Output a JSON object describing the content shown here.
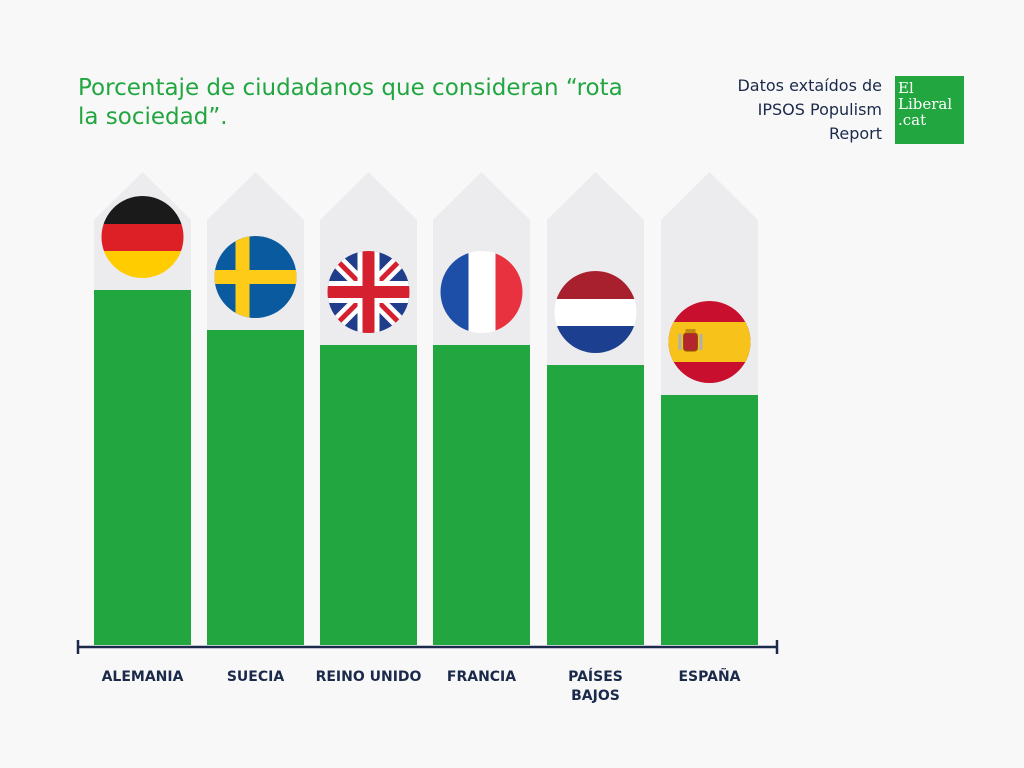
{
  "title": "Porcentaje de ciudadanos que consideran “rota la sociedad”.",
  "source": {
    "line1": "Datos extaídos de",
    "line2": "IPSOS Populism",
    "line3": "Report"
  },
  "logo": {
    "line1": "El",
    "line2": "Liberal",
    "line3": ".cat"
  },
  "colors": {
    "bar": "#21a640",
    "background_column": "#ececee",
    "axis": "#1b2a4a",
    "title": "#21a640"
  },
  "chart_data": {
    "type": "bar",
    "categories": [
      "ALEMANIA",
      "SUECIA",
      "REINO UNIDO",
      "FRANCIA",
      "PAÍSES BAJOS",
      "ESPAÑA"
    ],
    "category_lines": [
      [
        "ALEMANIA"
      ],
      [
        "SUECIA"
      ],
      [
        "REINO UNIDO"
      ],
      [
        "FRANCIA"
      ],
      [
        "PAÍSES",
        "BAJOS"
      ],
      [
        "ESPAÑA"
      ]
    ],
    "flags": [
      "germany-flag",
      "sweden-flag",
      "united-kingdom-flag",
      "france-flag",
      "netherlands-flag",
      "spain-flag"
    ],
    "values": [
      71,
      63,
      60,
      60,
      56,
      50
    ],
    "ylim": [
      0,
      100
    ],
    "title": "",
    "xlabel": "",
    "ylabel": "",
    "grid": false,
    "legend": "none"
  }
}
